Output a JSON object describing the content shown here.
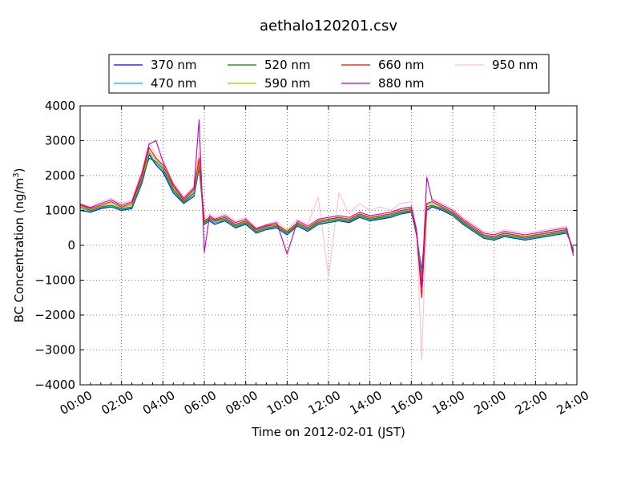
{
  "chart_data": {
    "type": "line",
    "title": "aethalo120201.csv",
    "xlabel": "Time on 2012-02-01 (JST)",
    "ylabel_main": "BC Concentration (ng/m",
    "ylabel_sup": "3",
    "ylabel_tail": ")",
    "xlim": [
      "00:00",
      "24:00"
    ],
    "ylim": [
      -4000,
      4000
    ],
    "grid": true,
    "legend_placement": "top-center",
    "x_ticks": [
      "00:00",
      "02:00",
      "04:00",
      "06:00",
      "08:00",
      "10:00",
      "12:00",
      "14:00",
      "16:00",
      "18:00",
      "20:00",
      "22:00",
      "24:00"
    ],
    "y_ticks": [
      -4000,
      -3000,
      -2000,
      -1000,
      0,
      1000,
      2000,
      3000,
      4000
    ],
    "x": [
      "00:00",
      "00:30",
      "01:00",
      "01:30",
      "02:00",
      "02:30",
      "03:00",
      "03:20",
      "03:40",
      "04:00",
      "04:30",
      "05:00",
      "05:30",
      "05:45",
      "06:00",
      "06:15",
      "06:30",
      "07:00",
      "07:30",
      "08:00",
      "08:30",
      "09:00",
      "09:30",
      "10:00",
      "10:30",
      "11:00",
      "11:30",
      "12:00",
      "12:30",
      "13:00",
      "13:30",
      "14:00",
      "14:30",
      "15:00",
      "15:30",
      "16:00",
      "16:15",
      "16:30",
      "16:45",
      "17:00",
      "17:30",
      "18:00",
      "18:30",
      "19:00",
      "19:30",
      "20:00",
      "20:30",
      "21:00",
      "21:30",
      "22:00",
      "22:30",
      "23:00",
      "23:30",
      "23:50"
    ],
    "series": [
      {
        "name": "370 nm",
        "color": "#0000ff",
        "values": [
          1000,
          950,
          1050,
          1100,
          1000,
          1050,
          1800,
          2600,
          2300,
          2100,
          1500,
          1200,
          1400,
          2200,
          600,
          700,
          600,
          700,
          500,
          600,
          350,
          450,
          500,
          300,
          550,
          400,
          600,
          650,
          700,
          650,
          800,
          700,
          750,
          800,
          900,
          950,
          300,
          -700,
          1000,
          1100,
          1000,
          850,
          600,
          400,
          200,
          150,
          250,
          200,
          150,
          200,
          250,
          300,
          350,
          -100
        ]
      },
      {
        "name": "470 nm",
        "color": "#00bfbf",
        "values": [
          1050,
          980,
          1080,
          1120,
          1020,
          1080,
          1850,
          2650,
          2350,
          2150,
          1550,
          1230,
          1450,
          2250,
          620,
          720,
          640,
          720,
          520,
          620,
          370,
          470,
          520,
          320,
          570,
          420,
          620,
          670,
          720,
          680,
          820,
          720,
          780,
          820,
          920,
          980,
          350,
          -800,
          1050,
          1130,
          1030,
          870,
          620,
          420,
          220,
          170,
          270,
          220,
          170,
          220,
          270,
          320,
          370,
          -120
        ]
      },
      {
        "name": "520 nm",
        "color": "#008000",
        "values": [
          1100,
          1000,
          1100,
          1150,
          1050,
          1100,
          1900,
          2500,
          2400,
          2200,
          1600,
          1250,
          1500,
          2300,
          650,
          750,
          680,
          750,
          550,
          650,
          400,
          500,
          550,
          350,
          600,
          450,
          650,
          700,
          750,
          700,
          850,
          750,
          800,
          850,
          950,
          1000,
          380,
          -900,
          1100,
          1150,
          1050,
          900,
          650,
          450,
          250,
          200,
          300,
          250,
          200,
          250,
          300,
          350,
          400,
          -150
        ]
      },
      {
        "name": "590 nm",
        "color": "#bfbf00",
        "values": [
          1120,
          1020,
          1120,
          1200,
          1080,
          1150,
          1950,
          2700,
          2450,
          2250,
          1650,
          1280,
          1550,
          2350,
          680,
          780,
          700,
          780,
          580,
          680,
          430,
          530,
          580,
          380,
          630,
          480,
          680,
          730,
          780,
          730,
          880,
          780,
          830,
          880,
          980,
          1030,
          400,
          -1000,
          1150,
          1200,
          1080,
          930,
          680,
          480,
          280,
          230,
          330,
          280,
          230,
          280,
          330,
          380,
          430,
          -180
        ]
      },
      {
        "name": "660 nm",
        "color": "#ff0000",
        "values": [
          1150,
          1050,
          1150,
          1250,
          1100,
          1200,
          2000,
          2800,
          2500,
          2300,
          1700,
          1300,
          1600,
          2500,
          700,
          800,
          720,
          800,
          600,
          700,
          450,
          550,
          600,
          400,
          650,
          500,
          700,
          750,
          800,
          750,
          900,
          800,
          850,
          900,
          1000,
          1050,
          420,
          -1500,
          1200,
          1250,
          1100,
          950,
          700,
          500,
          300,
          250,
          350,
          300,
          250,
          300,
          350,
          400,
          450,
          -200
        ]
      },
      {
        "name": "880 nm",
        "color": "#bf00bf",
        "values": [
          1180,
          1080,
          1200,
          1300,
          1150,
          1250,
          2100,
          2900,
          3000,
          2400,
          1750,
          1350,
          1650,
          3600,
          -200,
          850,
          750,
          850,
          650,
          750,
          480,
          580,
          650,
          -250,
          700,
          550,
          750,
          800,
          850,
          800,
          950,
          850,
          900,
          950,
          1050,
          1100,
          450,
          -1200,
          1950,
          1300,
          1150,
          1000,
          750,
          550,
          350,
          300,
          400,
          350,
          300,
          350,
          400,
          450,
          500,
          -300
        ]
      },
      {
        "name": "950 nm",
        "color": "#ffc0cb",
        "values": [
          1200,
          1100,
          1250,
          1350,
          1200,
          1300,
          2150,
          2950,
          2600,
          2450,
          1800,
          1400,
          1700,
          2700,
          750,
          900,
          800,
          900,
          700,
          800,
          500,
          600,
          700,
          450,
          750,
          600,
          1400,
          -900,
          1500,
          900,
          1200,
          1000,
          1100,
          1000,
          1200,
          1250,
          500,
          -3300,
          1000,
          1350,
          1200,
          1050,
          800,
          600,
          400,
          350,
          450,
          400,
          350,
          400,
          450,
          500,
          550,
          -250
        ]
      }
    ]
  }
}
